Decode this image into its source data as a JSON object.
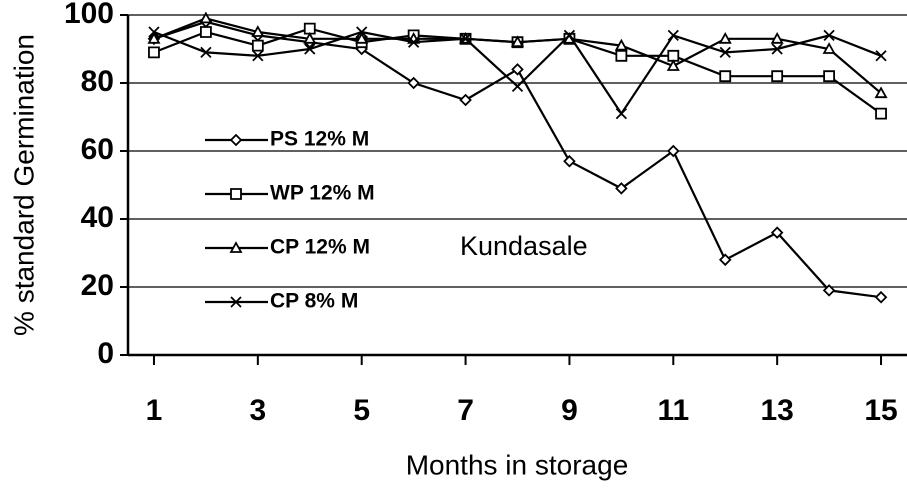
{
  "chart_data": {
    "type": "line",
    "annotation": "Kundasale",
    "xlabel": "Months in storage",
    "ylabel": "% standard Germination",
    "x": [
      1,
      2,
      3,
      4,
      5,
      6,
      7,
      8,
      9,
      10,
      11,
      12,
      13,
      14,
      15
    ],
    "series": [
      {
        "name": "PS 12% M",
        "color": "#000000",
        "marker": "diamond",
        "values": [
          93,
          98,
          94,
          92,
          90,
          80,
          75,
          84,
          57,
          49,
          60,
          28,
          36,
          19,
          17
        ]
      },
      {
        "name": "WP 12% M",
        "color": "#000000",
        "marker": "square",
        "values": [
          89,
          95,
          91,
          96,
          92,
          94,
          93,
          92,
          93,
          88,
          88,
          82,
          82,
          82,
          71
        ]
      },
      {
        "name": "CP 12% M",
        "color": "#000000",
        "marker": "triangle",
        "values": [
          93,
          99,
          95,
          93,
          93,
          93,
          93,
          92,
          93,
          91,
          85,
          93,
          93,
          90,
          77
        ]
      },
      {
        "name": "CP 8% M",
        "color": "#000000",
        "marker": "x",
        "values": [
          95,
          89,
          88,
          90,
          95,
          92,
          93,
          79,
          94,
          71,
          94,
          89,
          90,
          94,
          88
        ]
      }
    ],
    "xlim": [
      0.5,
      15.5
    ],
    "xticks": [
      1,
      3,
      5,
      7,
      9,
      11,
      13,
      15
    ],
    "ylim": [
      0,
      100
    ],
    "yticks": [
      0,
      20,
      40,
      60,
      80,
      100
    ],
    "grid": true
  }
}
